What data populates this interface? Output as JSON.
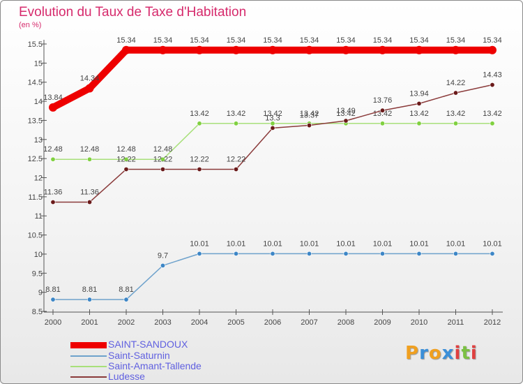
{
  "title": "Evolution du Taux de Taxe d'Habitation",
  "subtitle": "(en %)",
  "logo": {
    "letters": [
      "P",
      "r",
      "o",
      "x",
      "i",
      "t",
      "i"
    ],
    "colors": [
      "#f0a020",
      "#3b8fd8",
      "#f0a020",
      "#3b8fd8",
      "#e04040",
      "#7bc043",
      "#e04040"
    ]
  },
  "chart_data": {
    "type": "line",
    "x": [
      "2000",
      "2001",
      "2002",
      "2003",
      "2004",
      "2005",
      "2006",
      "2007",
      "2008",
      "2009",
      "2010",
      "2011",
      "2012"
    ],
    "ylim": [
      8.5,
      15.5
    ],
    "yticks": [
      "8.5",
      "9",
      "9.5",
      "10",
      "10.5",
      "11",
      "11.5",
      "12",
      "12.5",
      "13",
      "13.5",
      "14",
      "14.5",
      "15",
      "15.5"
    ],
    "grid": false,
    "legend_position": "bottom-left",
    "series": [
      {
        "name": "SAINT-SANDOUX",
        "color": "#ee0000",
        "width": 10,
        "values": [
          13.84,
          14.34,
          15.34,
          15.34,
          15.34,
          15.34,
          15.34,
          15.34,
          15.34,
          15.34,
          15.34,
          15.34,
          15.34
        ],
        "labels": [
          "13.84",
          "14.34",
          "15.34",
          "15.34",
          "15.34",
          "15.34",
          "15.34",
          "15.34",
          "15.34",
          "15.34",
          "15.34",
          "15.34",
          "15.34"
        ]
      },
      {
        "name": "Saint-Saturnin",
        "color": "#6ea2cc",
        "marker": "#3d86c6",
        "width": 1.5,
        "values": [
          8.81,
          8.81,
          8.81,
          9.7,
          10.01,
          10.01,
          10.01,
          10.01,
          10.01,
          10.01,
          10.01,
          10.01,
          10.01
        ],
        "labels": [
          "8.81",
          "8.81",
          "8.81",
          "9.7",
          "10.01",
          "10.01",
          "10.01",
          "10.01",
          "10.01",
          "10.01",
          "10.01",
          "10.01",
          "10.01"
        ]
      },
      {
        "name": "Saint-Amant-Tallende",
        "color": "#a8e07a",
        "marker": "#80d040",
        "width": 1.5,
        "values": [
          12.48,
          12.48,
          12.48,
          12.48,
          13.42,
          13.42,
          13.42,
          13.42,
          13.42,
          13.42,
          13.42,
          13.42,
          13.42
        ],
        "labels": [
          "12.48",
          "12.48",
          "12.48",
          "12.48",
          "13.42",
          "13.42",
          "13.42",
          "13.42",
          "13.42",
          "13.42",
          "13.42",
          "13.42",
          "13.42"
        ]
      },
      {
        "name": "Ludesse",
        "color": "#8a3a3a",
        "marker": "#6a1a1a",
        "width": 1.5,
        "values": [
          11.36,
          11.36,
          12.22,
          12.22,
          12.22,
          12.22,
          13.3,
          13.37,
          13.49,
          13.76,
          13.94,
          14.22,
          14.43
        ],
        "labels": [
          "11.36",
          "11.36",
          "12.22",
          "12.22",
          "12.22",
          "12.22",
          "13.3",
          "13.37",
          "13.49",
          "13.76",
          "13.94",
          "14.22",
          "14.43"
        ]
      }
    ]
  }
}
